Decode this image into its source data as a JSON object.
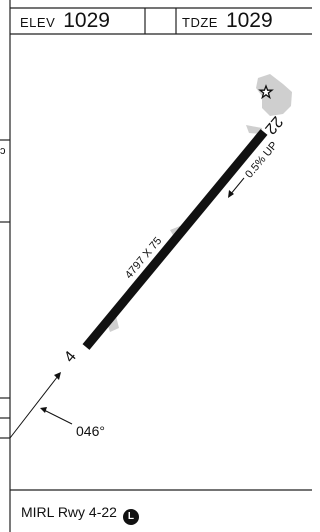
{
  "header": {
    "elev_label": "ELEV",
    "elev_value": "1029",
    "tdze_label": "TDZE",
    "tdze_value": "1029"
  },
  "runway": {
    "end_low": "4",
    "end_high": "22",
    "dimensions": "4797 X 75",
    "slope": "0.5% UP",
    "heading": "046°"
  },
  "footer": {
    "lighting": "MIRL Rwy 4-22",
    "badge": "L"
  },
  "colors": {
    "runway": "#111111",
    "apron": "#cfcfcf",
    "frame": "#222222"
  },
  "icons": [
    "beacon-star-icon",
    "lighting-badge-icon"
  ]
}
